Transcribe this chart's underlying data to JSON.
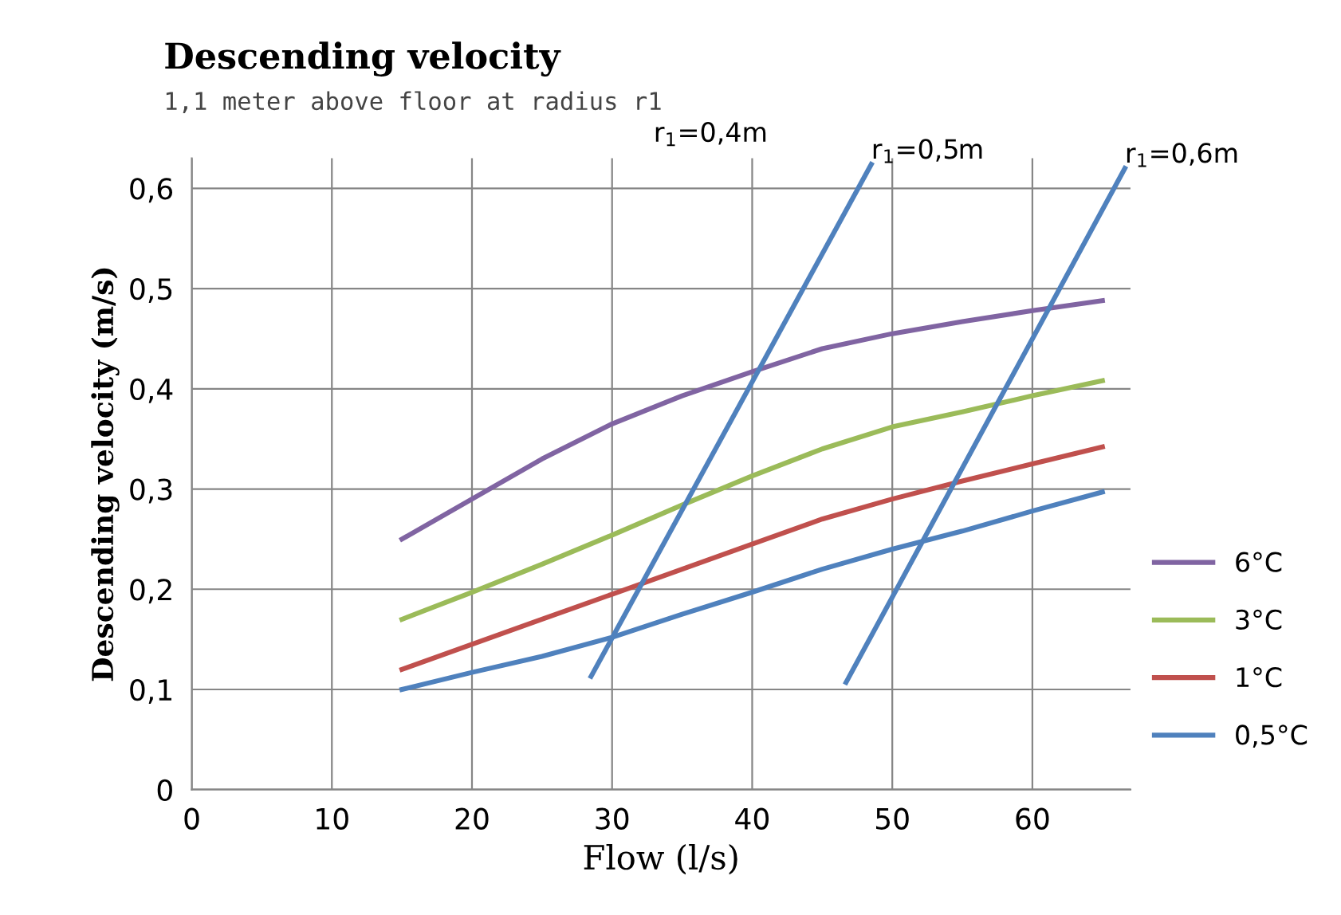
{
  "chart_data": {
    "type": "line",
    "title": "Descending velocity",
    "subtitle": "1,1 meter above floor at radius r1",
    "xlabel": "Flow (l/s)",
    "ylabel": "Descending velocity (m/s)",
    "x": [
      15,
      20,
      25,
      30,
      35,
      40,
      45,
      50,
      55,
      60,
      65
    ],
    "series": [
      {
        "name": "6°C",
        "color": "#8064a2",
        "values": [
          0.25,
          0.29,
          0.33,
          0.365,
          0.393,
          0.417,
          0.44,
          0.455,
          0.467,
          0.478,
          0.488
        ]
      },
      {
        "name": "3°C",
        "color": "#9bbb59",
        "values": [
          0.17,
          0.197,
          0.225,
          0.254,
          0.284,
          0.313,
          0.34,
          0.362,
          0.377,
          0.393,
          0.408
        ]
      },
      {
        "name": "1°C",
        "color": "#c0504d",
        "values": [
          0.12,
          0.145,
          0.17,
          0.195,
          0.22,
          0.245,
          0.27,
          0.29,
          0.308,
          0.325,
          0.342
        ]
      },
      {
        "name": "0,5°C",
        "color": "#4f81bd",
        "values": [
          0.1,
          0.117,
          0.133,
          0.152,
          0.175,
          0.197,
          0.22,
          0.24,
          0.258,
          0.278,
          0.297
        ]
      },
      {
        "name": "r$_{1}$=0,5m",
        "color": "#4f81bd",
        "x": [
          28.5,
          48.5
        ],
        "values": [
          0.113,
          0.624
        ]
      },
      {
        "name": "r$_{1}$=0,6m",
        "color": "#4f81bd",
        "x": [
          46.7,
          66.6
        ],
        "values": [
          0.107,
          0.62
        ]
      }
    ],
    "annotations": [
      "r$_{1}$=0,4m"
    ],
    "xlim": [
      0,
      67
    ],
    "xticks": [
      0,
      10,
      20,
      30,
      40,
      50,
      60
    ],
    "ylim": [
      0,
      0.63
    ],
    "yticks": [
      {
        "value": 0,
        "label": "0"
      },
      {
        "value": 0.1,
        "label": "0,1"
      },
      {
        "value": 0.2,
        "label": "0,2"
      },
      {
        "value": 0.3,
        "label": "0,3"
      },
      {
        "value": 0.4,
        "label": "0,4"
      },
      {
        "value": 0.5,
        "label": "0,5"
      },
      {
        "value": 0.6,
        "label": "0,6"
      }
    ],
    "grid": true,
    "legend": "right",
    "marker": "none",
    "line_style": "solid"
  }
}
